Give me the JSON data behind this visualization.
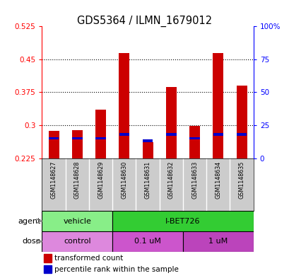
{
  "title": "GDS5364 / ILMN_1679012",
  "samples": [
    "GSM1148627",
    "GSM1148628",
    "GSM1148629",
    "GSM1148630",
    "GSM1148631",
    "GSM1148632",
    "GSM1148633",
    "GSM1148634",
    "GSM1148635"
  ],
  "transformed_count": [
    0.287,
    0.289,
    0.336,
    0.464,
    0.262,
    0.387,
    0.298,
    0.465,
    0.39
  ],
  "percentile_rank_pct": [
    15,
    15,
    15,
    18,
    13,
    18,
    15,
    18,
    18
  ],
  "y_min": 0.225,
  "y_max": 0.525,
  "y_ticks": [
    0.225,
    0.3,
    0.375,
    0.45,
    0.525
  ],
  "y_tick_labels": [
    "0.225",
    "0.3",
    "0.375",
    "0.45",
    "0.525"
  ],
  "right_y_ticks_pct": [
    0,
    25,
    50,
    75,
    100
  ],
  "right_y_labels": [
    "0",
    "25",
    "50",
    "75",
    "100%"
  ],
  "bar_color": "#cc0000",
  "percentile_color": "#0000cc",
  "agent_groups": [
    {
      "label": "vehicle",
      "start": 0,
      "end": 3,
      "color": "#88ee88"
    },
    {
      "label": "I-BET726",
      "start": 3,
      "end": 9,
      "color": "#33cc33"
    }
  ],
  "dose_groups": [
    {
      "label": "control",
      "start": 0,
      "end": 3,
      "color": "#dd88dd"
    },
    {
      "label": "0.1 uM",
      "start": 3,
      "end": 6,
      "color": "#cc55cc"
    },
    {
      "label": "1 uM",
      "start": 6,
      "end": 9,
      "color": "#bb44bb"
    }
  ],
  "bar_width": 0.45,
  "bg_color": "#ffffff",
  "sample_bg": "#cccccc",
  "legend_items": [
    {
      "label": "transformed count",
      "color": "#cc0000"
    },
    {
      "label": "percentile rank within the sample",
      "color": "#0000cc"
    }
  ]
}
